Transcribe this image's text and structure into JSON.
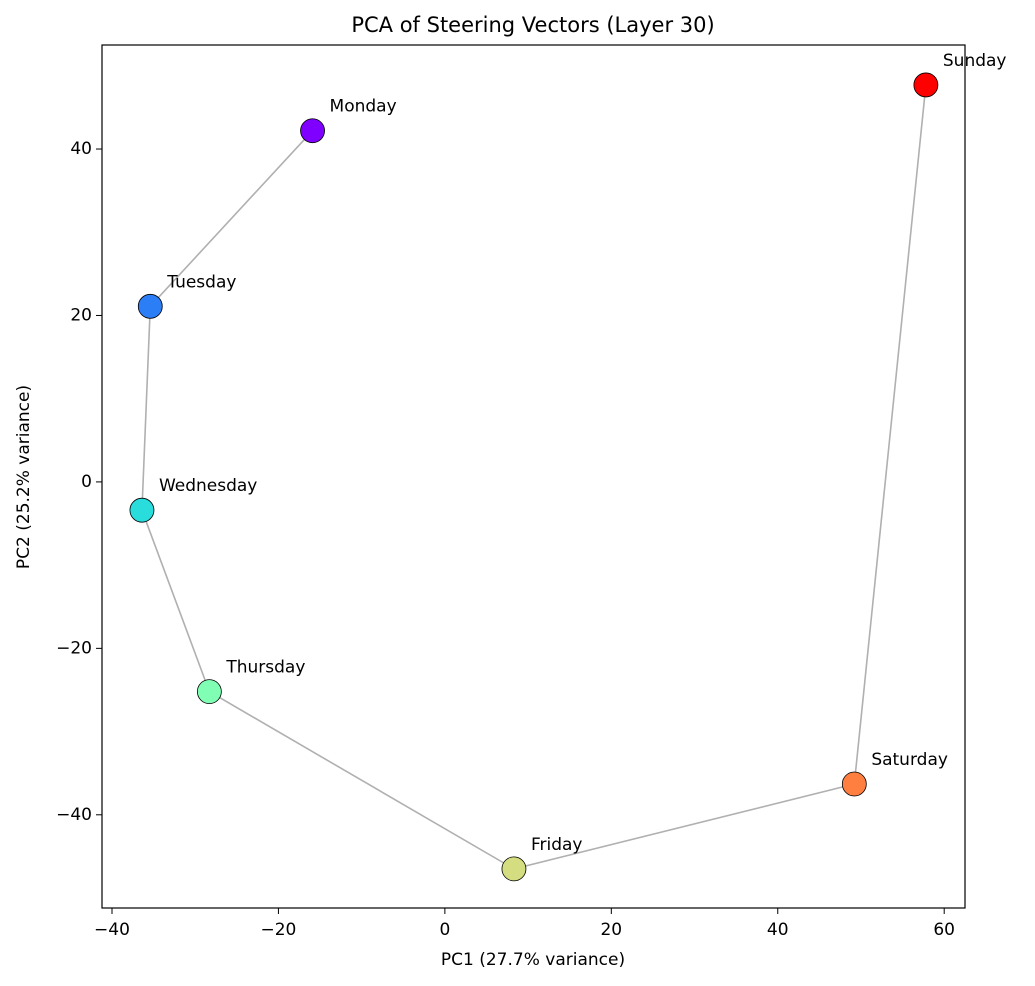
{
  "chart_data": {
    "type": "scatter",
    "title": "PCA of Steering Vectors (Layer 30)",
    "x_label": "PC1 (27.7% variance)",
    "y_label": "PC2 (25.2% variance)",
    "labels": [
      "Monday",
      "Tuesday",
      "Wednesday",
      "Thursday",
      "Friday",
      "Saturday",
      "Sunday"
    ],
    "x": [
      -15.9,
      -35.4,
      -36.4,
      -28.3,
      8.3,
      49.2,
      57.8
    ],
    "y": [
      42.2,
      21.1,
      -3.4,
      -25.2,
      -46.5,
      -36.3,
      47.7
    ],
    "colors": [
      "#8000ff",
      "#2c7ef7",
      "#2adddd",
      "#80ffb4",
      "#d4dd80",
      "#ff7f41",
      "#ff0000"
    ],
    "line_color": "#b0b0b0",
    "xlim": [
      -41.2,
      62.5
    ],
    "ylim": [
      -51.2,
      52.5
    ],
    "xticks": [
      {
        "value": -40,
        "label": "−40"
      },
      {
        "value": -20,
        "label": "−20"
      },
      0,
      20,
      40,
      60
    ],
    "yticks": [
      {
        "value": -40,
        "label": "−40"
      },
      {
        "value": -20,
        "label": "−20"
      },
      0,
      20,
      40
    ],
    "grid": false
  }
}
